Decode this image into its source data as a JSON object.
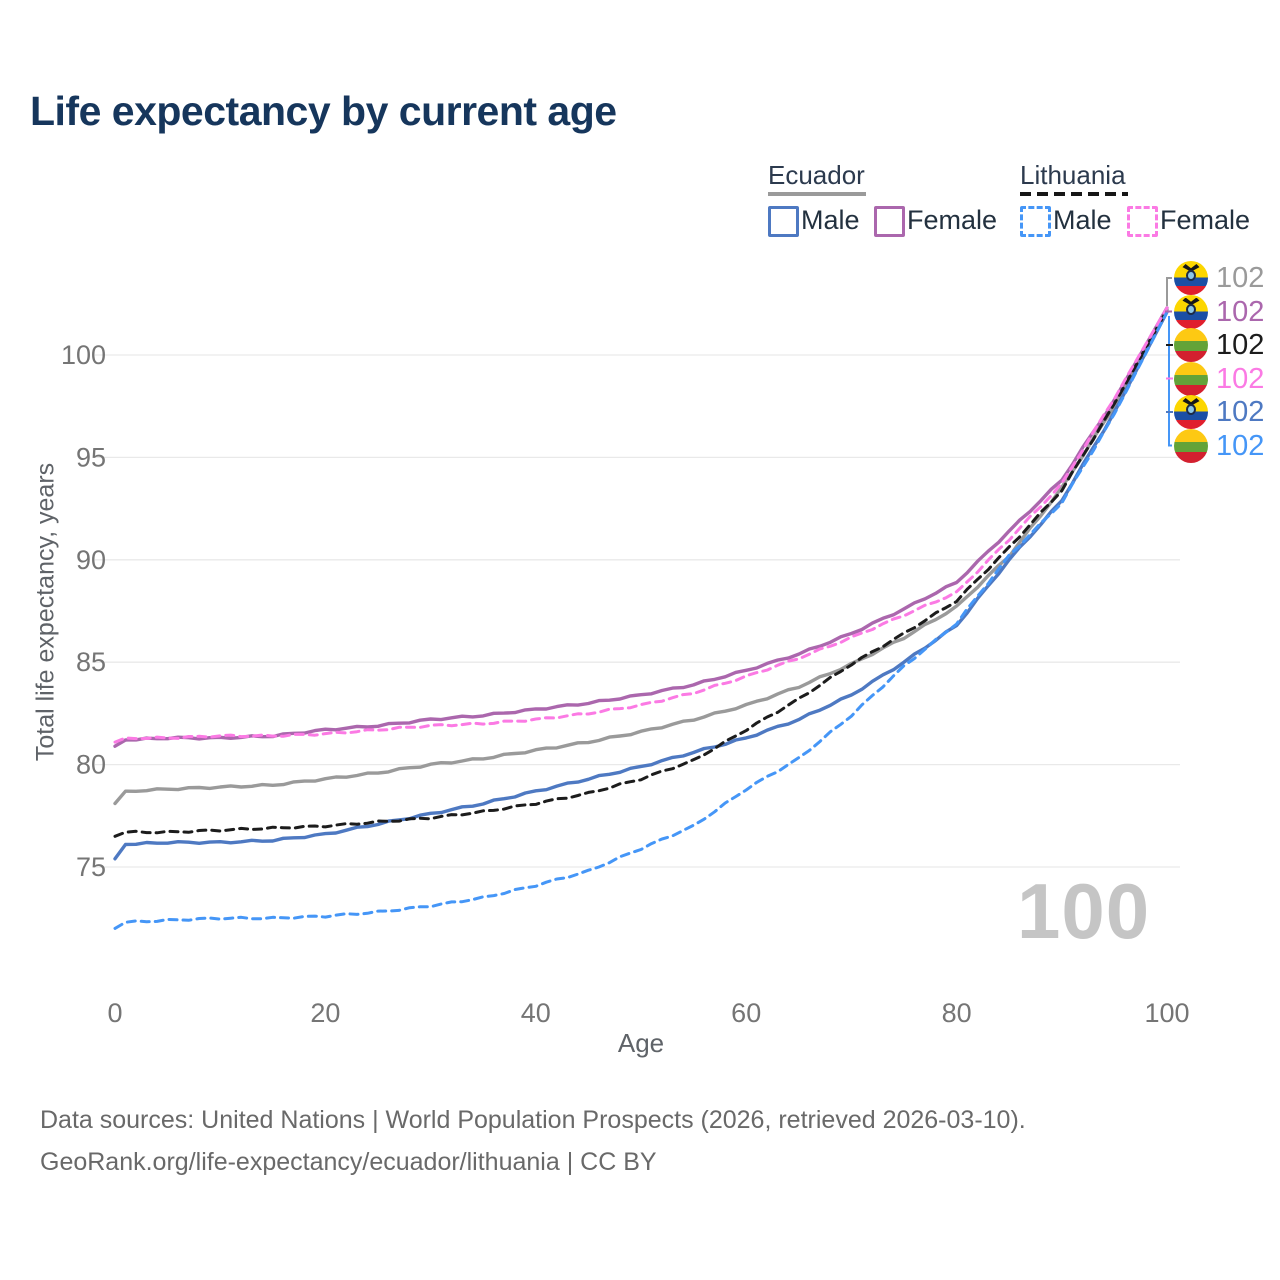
{
  "title": "Life expectancy by current age",
  "legend": {
    "groups": [
      {
        "country": "Ecuador",
        "line_style": "solid",
        "underline_color": "#9a9a9a",
        "items": [
          {
            "label": "Male",
            "color": "#4e79c2"
          },
          {
            "label": "Female",
            "color": "#ab67ad"
          }
        ]
      },
      {
        "country": "Lithuania",
        "line_style": "dashed",
        "underline_color": "#161616",
        "items": [
          {
            "label": "Male",
            "color": "#4596f7"
          },
          {
            "label": "Female",
            "color": "#fb7ae4"
          }
        ]
      }
    ]
  },
  "end_labels": [
    {
      "flag": "ecuador",
      "value": "102",
      "color": "#9a9a9a"
    },
    {
      "flag": "ecuador",
      "value": "102",
      "color": "#ab67ad"
    },
    {
      "flag": "lithuania",
      "value": "102",
      "color": "#1c1c1c"
    },
    {
      "flag": "lithuania",
      "value": "102",
      "color": "#fb7ae4"
    },
    {
      "flag": "ecuador",
      "value": "102",
      "color": "#4e79c2"
    },
    {
      "flag": "lithuania",
      "value": "102",
      "color": "#4596f7"
    }
  ],
  "watermark": "100",
  "footer": {
    "line1": "Data sources: United Nations | World Population Prospects (2026, retrieved 2026-03-10).",
    "line2": "GeoRank.org/life-expectancy/ecuador/lithuania | CC BY"
  },
  "chart_data": {
    "type": "line",
    "title": "Life expectancy by current age",
    "xlabel": "Age",
    "ylabel": "Total life expectancy, years",
    "xlim": [
      0,
      100
    ],
    "ylim": [
      71,
      103
    ],
    "xticks": [
      0,
      20,
      40,
      60,
      80,
      100
    ],
    "yticks": [
      75,
      80,
      85,
      90,
      95,
      100
    ],
    "grid": "horizontal",
    "legend_position": "top-right",
    "x": [
      0,
      1,
      5,
      10,
      15,
      20,
      25,
      30,
      35,
      40,
      45,
      50,
      55,
      60,
      65,
      70,
      75,
      80,
      85,
      90,
      95,
      100
    ],
    "series": [
      {
        "name": "Ecuador (both sexes)",
        "country": "Ecuador",
        "sex": "all",
        "color": "#9a9a9a",
        "dash": "solid",
        "values": [
          78.1,
          78.7,
          78.8,
          78.9,
          79.0,
          79.3,
          79.6,
          80.0,
          80.3,
          80.7,
          81.1,
          81.6,
          82.2,
          82.9,
          83.8,
          84.9,
          86.2,
          87.7,
          90.2,
          93.5,
          97.5,
          102.2
        ]
      },
      {
        "name": "Ecuador Female",
        "country": "Ecuador",
        "sex": "female",
        "color": "#ab67ad",
        "dash": "solid",
        "values": [
          80.9,
          81.2,
          81.3,
          81.3,
          81.4,
          81.7,
          81.9,
          82.2,
          82.4,
          82.7,
          83.0,
          83.4,
          83.9,
          84.6,
          85.4,
          86.4,
          87.6,
          88.9,
          91.4,
          93.9,
          97.8,
          102.3
        ]
      },
      {
        "name": "Lithuania (both sexes)",
        "country": "Lithuania",
        "sex": "all",
        "color": "#1c1c1c",
        "dash": "dashed",
        "values": [
          76.5,
          76.7,
          76.7,
          76.8,
          76.9,
          77.0,
          77.2,
          77.4,
          77.7,
          78.1,
          78.6,
          79.3,
          80.2,
          81.7,
          83.2,
          84.9,
          86.4,
          88.0,
          90.6,
          93.4,
          97.6,
          102.2
        ]
      },
      {
        "name": "Lithuania Female",
        "country": "Lithuania",
        "sex": "female",
        "color": "#fb7ae4",
        "dash": "dashed",
        "values": [
          81.1,
          81.3,
          81.3,
          81.4,
          81.4,
          81.5,
          81.7,
          81.9,
          82.0,
          82.2,
          82.5,
          82.9,
          83.5,
          84.3,
          85.2,
          86.2,
          87.3,
          88.4,
          91.0,
          93.7,
          97.9,
          102.3
        ]
      },
      {
        "name": "Ecuador Male",
        "country": "Ecuador",
        "sex": "male",
        "color": "#4e79c2",
        "dash": "solid",
        "values": [
          75.4,
          76.1,
          76.2,
          76.2,
          76.3,
          76.6,
          77.1,
          77.6,
          78.1,
          78.7,
          79.3,
          79.9,
          80.6,
          81.3,
          82.2,
          83.4,
          85.0,
          86.8,
          90.0,
          92.9,
          97.2,
          102.1
        ]
      },
      {
        "name": "Lithuania Male",
        "country": "Lithuania",
        "sex": "male",
        "color": "#4596f7",
        "dash": "dashed",
        "values": [
          72.0,
          72.3,
          72.4,
          72.5,
          72.5,
          72.6,
          72.8,
          73.1,
          73.5,
          74.1,
          74.8,
          75.9,
          77.0,
          78.8,
          80.3,
          82.4,
          84.8,
          86.9,
          90.2,
          92.8,
          97.1,
          102.1
        ]
      }
    ]
  }
}
